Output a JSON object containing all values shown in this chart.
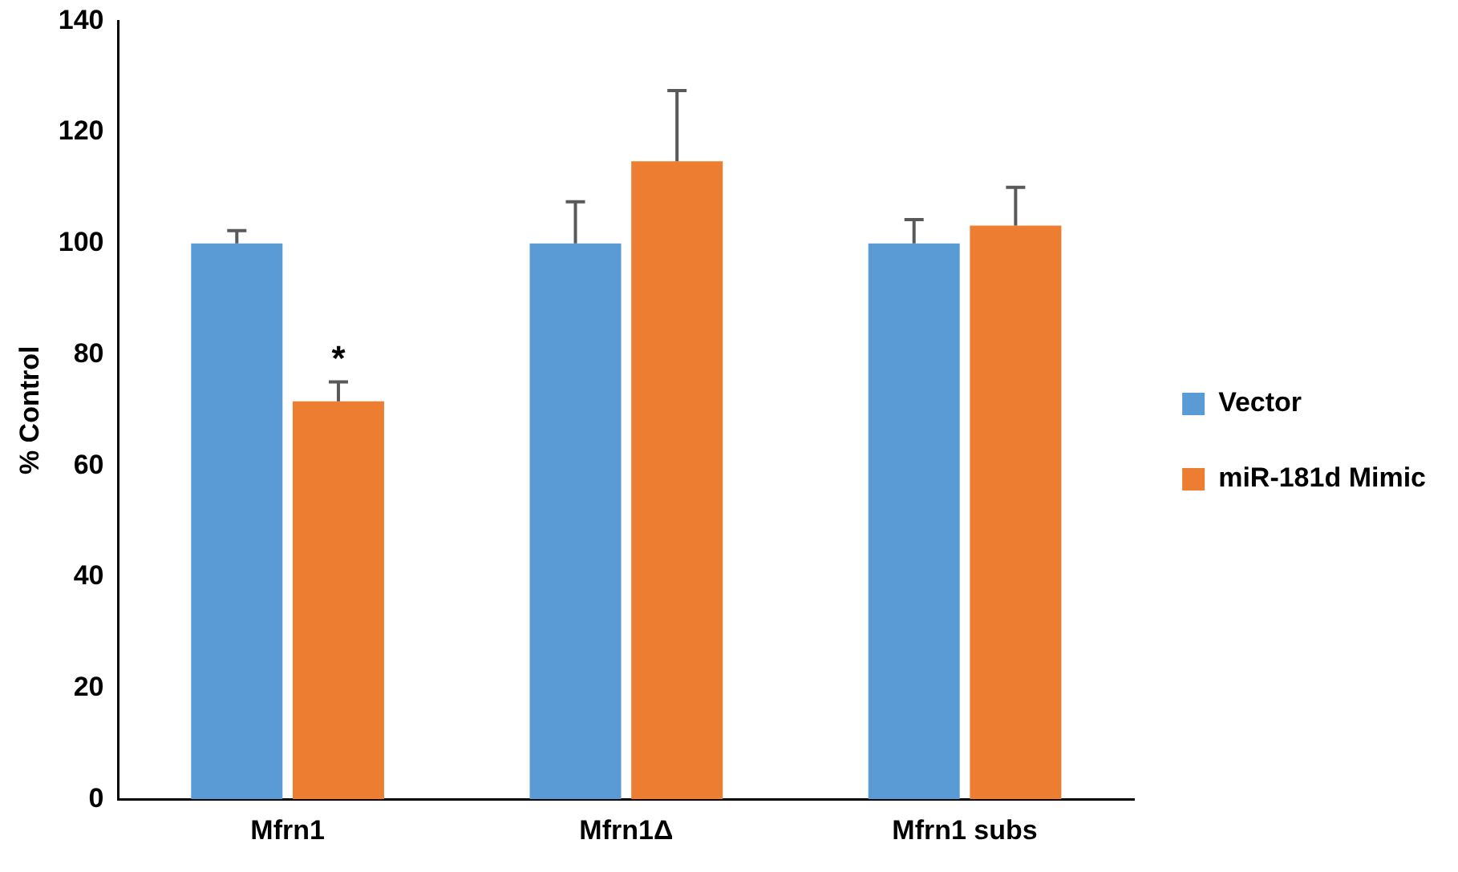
{
  "chart_data": {
    "type": "bar",
    "ylabel": "% Control",
    "categories": [
      "Mfrn1",
      "Mfrn1Δ",
      "Mfrn1 subs"
    ],
    "series": [
      {
        "name": "Vector",
        "color": "#5b9bd5",
        "values": [
          100,
          100,
          100
        ],
        "errors": [
          [
            100,
            102.3
          ],
          [
            100,
            107.5
          ],
          [
            100,
            104.3
          ]
        ]
      },
      {
        "name": "miR-181d Mimic",
        "color": "#ed7d31",
        "values": [
          71.6,
          114.8,
          103.2
        ],
        "errors": [
          [
            71.6,
            75.1
          ],
          [
            114.8,
            127.5
          ],
          [
            103.2,
            110.1
          ]
        ]
      }
    ],
    "ylim": [
      0,
      140
    ],
    "yticks": [
      0,
      20,
      40,
      60,
      80,
      100,
      120,
      140
    ],
    "grid": false,
    "legend": "right",
    "annotations": [
      {
        "text": "*",
        "x": "Mfrn1",
        "y": 79
      }
    ]
  }
}
